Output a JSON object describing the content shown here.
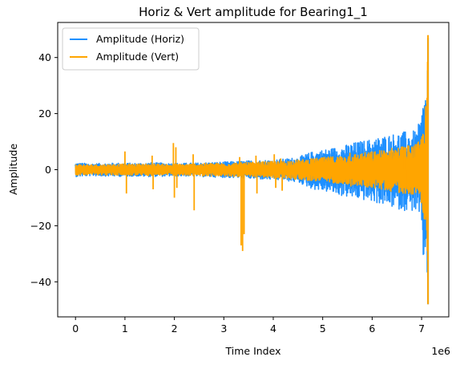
{
  "chart_data": {
    "type": "line",
    "title": "Horiz & Vert amplitude for Bearing1_1",
    "xlabel": "Time Index",
    "ylabel": "Amplitude",
    "x_offset_label": "1e6",
    "xlim": [
      -0.36,
      7.55
    ],
    "ylim": [
      -52.5,
      52.5
    ],
    "x_ticks": [
      0,
      1,
      2,
      3,
      4,
      5,
      6,
      7
    ],
    "x_tick_labels": [
      "0",
      "1",
      "2",
      "3",
      "4",
      "5",
      "6",
      "7"
    ],
    "y_ticks": [
      -40,
      -20,
      0,
      20,
      40
    ],
    "y_tick_labels": [
      "−40",
      "−20",
      "0",
      "20",
      "40"
    ],
    "legend_position": "top-left",
    "grid": false,
    "series": [
      {
        "name": "Amplitude (Horiz)",
        "color": "#1f90ff",
        "x": [
          0.0,
          0.3,
          0.6,
          0.9,
          1.2,
          1.5,
          1.8,
          2.1,
          2.4,
          2.7,
          3.0,
          3.3,
          3.6,
          3.9,
          4.2,
          4.5,
          4.8,
          5.1,
          5.4,
          5.7,
          6.0,
          6.3,
          6.6,
          6.9,
          7.0,
          7.05,
          7.1,
          7.13
        ],
        "upper": [
          2.5,
          2.2,
          2.3,
          2.4,
          2.3,
          2.5,
          2.4,
          2.3,
          2.4,
          2.6,
          2.8,
          3.0,
          3.3,
          3.5,
          3.8,
          4.5,
          6.5,
          7.5,
          8.5,
          10.0,
          11.0,
          12.5,
          13.5,
          14.0,
          20.0,
          28.0,
          30.0,
          47.0
        ],
        "lower": [
          -2.5,
          -2.2,
          -2.3,
          -2.4,
          -2.3,
          -2.5,
          -2.4,
          -2.3,
          -2.4,
          -2.6,
          -2.8,
          -3.0,
          -3.3,
          -3.6,
          -3.9,
          -4.6,
          -7.0,
          -8.0,
          -9.5,
          -10.5,
          -11.5,
          -13.0,
          -14.5,
          -15.0,
          -22.0,
          -38.0,
          -30.0,
          -48.0
        ]
      },
      {
        "name": "Amplitude (Vert)",
        "color": "#ffa500",
        "x": [
          0.0,
          0.3,
          0.6,
          0.9,
          1.2,
          1.5,
          1.8,
          2.1,
          2.4,
          2.7,
          3.0,
          3.3,
          3.6,
          3.9,
          4.2,
          4.5,
          4.8,
          5.1,
          5.4,
          5.7,
          6.0,
          6.3,
          6.6,
          6.9,
          7.0,
          7.05,
          7.1,
          7.13
        ],
        "upper": [
          2.0,
          1.8,
          1.9,
          2.0,
          2.0,
          2.1,
          2.0,
          2.0,
          2.1,
          2.3,
          2.4,
          2.5,
          2.7,
          2.9,
          3.1,
          3.5,
          4.0,
          4.5,
          5.0,
          5.8,
          6.5,
          7.5,
          8.5,
          9.0,
          12.0,
          20.0,
          25.0,
          48.0
        ],
        "lower": [
          -2.0,
          -1.8,
          -1.9,
          -2.0,
          -2.0,
          -2.1,
          -2.0,
          -2.0,
          -2.1,
          -2.3,
          -2.4,
          -2.5,
          -2.7,
          -2.9,
          -3.1,
          -3.5,
          -4.0,
          -4.5,
          -5.0,
          -5.8,
          -6.5,
          -7.5,
          -8.5,
          -9.0,
          -12.0,
          -20.0,
          -25.0,
          -48.0
        ],
        "spikes": [
          {
            "x": 1.0,
            "y": 6.5
          },
          {
            "x": 1.03,
            "y": -8.5
          },
          {
            "x": 1.55,
            "y": 5.0
          },
          {
            "x": 1.57,
            "y": -7.0
          },
          {
            "x": 1.98,
            "y": 9.5
          },
          {
            "x": 2.0,
            "y": -10.0
          },
          {
            "x": 2.03,
            "y": 8.0
          },
          {
            "x": 2.05,
            "y": -6.5
          },
          {
            "x": 2.38,
            "y": 5.5
          },
          {
            "x": 2.4,
            "y": -14.5
          },
          {
            "x": 3.35,
            "y": -27.0
          },
          {
            "x": 3.38,
            "y": -29.0
          },
          {
            "x": 3.41,
            "y": -23.0
          },
          {
            "x": 3.32,
            "y": 4.5
          },
          {
            "x": 3.65,
            "y": 5.0
          },
          {
            "x": 3.67,
            "y": -8.5
          },
          {
            "x": 4.02,
            "y": 5.5
          },
          {
            "x": 4.05,
            "y": -6.5
          },
          {
            "x": 4.15,
            "y": 4.0
          },
          {
            "x": 4.18,
            "y": -7.5
          },
          {
            "x": 5.55,
            "y": 6.0
          },
          {
            "x": 5.57,
            "y": -6.0
          },
          {
            "x": 6.65,
            "y": 7.0
          },
          {
            "x": 6.68,
            "y": -6.5
          }
        ]
      }
    ]
  }
}
